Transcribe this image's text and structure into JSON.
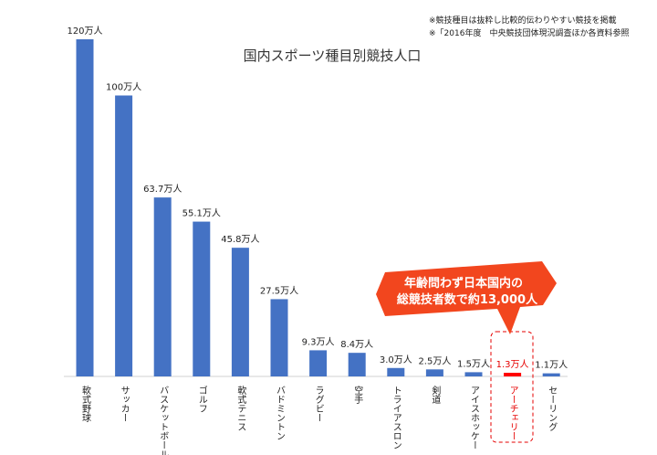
{
  "chart_data": {
    "type": "bar",
    "title": "国内スポーツ種目別競技人口",
    "notes": [
      "※競技種目は抜粋し比較的伝わりやすい競技を掲載",
      "※「2016年度　中央競技団体現況調査ほか各資料参照"
    ],
    "categories": [
      "軟式野球",
      "サッカー",
      "バスケットボール",
      "ゴルフ",
      "軟式テニス",
      "バドミントン",
      "ラグビー",
      "空手",
      "トライアスロン",
      "剣道",
      "アイスホッケー",
      "アーチェリー",
      "セーリング"
    ],
    "values": [
      120,
      100,
      63.7,
      55.1,
      45.8,
      27.5,
      9.3,
      8.4,
      3.0,
      2.5,
      1.5,
      1.3,
      1.1
    ],
    "value_labels": [
      "120万人",
      "100万人",
      "63.7万人",
      "55.1万人",
      "45.8万人",
      "27.5万人",
      "9.3万人",
      "8.4万人",
      "3.0万人",
      "2.5万人",
      "1.5万人",
      "1.3万人",
      "1.1万人"
    ],
    "unit": "万人",
    "ylim": [
      0,
      120
    ],
    "highlight_index": 11,
    "grid": false,
    "colors": {
      "bar": "#4472c4",
      "highlight": "#ff0000",
      "callout": "#f2461e"
    },
    "callout": [
      "年齢問わず日本国内の",
      "総競技者数で約13,000人"
    ]
  }
}
